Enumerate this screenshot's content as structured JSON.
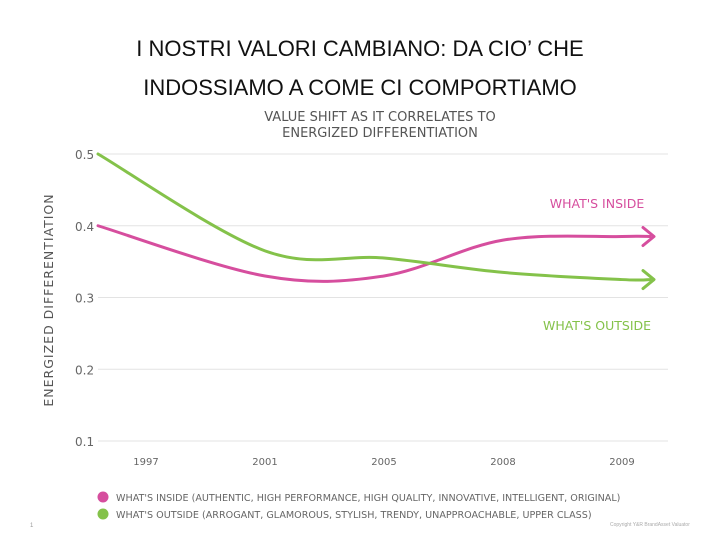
{
  "slide": {
    "title_line1": "I NOSTRI VALORI CAMBIANO: DA CIO’ CHE",
    "title_line2": "INDOSSIAMO A COME CI COMPORTIAMO",
    "page_number": "1",
    "copyright": "Copyright Y&R BrandAsset Valuator"
  },
  "chart_data": {
    "type": "line",
    "title": "VALUE SHIFT AS IT CORRELATES TO ENERGIZED DIFFERENTIATION",
    "title_lines": [
      "VALUE SHIFT AS IT CORRELATES TO",
      "ENERGIZED DIFFERENTIATION"
    ],
    "ylabel": "ENERGIZED DIFFERENTIATION",
    "xlabel": "",
    "x": [
      "1997",
      "2001",
      "2005",
      "2008",
      "2009"
    ],
    "ylim": [
      0.1,
      0.5
    ],
    "yticks": [
      "0.5",
      "0.4",
      "0.3",
      "0.2",
      "0.1"
    ],
    "grid": true,
    "series": [
      {
        "name": "WHAT'S INSIDE",
        "legend": "WHAT'S INSIDE (AUTHENTIC, HIGH PERFORMANCE, HIGH QUALITY, INNOVATIVE, INTELLIGENT, ORIGINAL)",
        "color": "#d64e9e",
        "values": [
          0.4,
          0.33,
          0.33,
          0.38,
          0.385
        ]
      },
      {
        "name": "WHAT'S OUTSIDE",
        "legend": "WHAT'S OUTSIDE (ARROGANT, GLAMOROUS, STYLISH, TRENDY, UNAPPROACHABLE, UPPER CLASS)",
        "color": "#84c24a",
        "values": [
          0.5,
          0.365,
          0.355,
          0.335,
          0.325
        ]
      }
    ],
    "legend_position": "bottom"
  }
}
